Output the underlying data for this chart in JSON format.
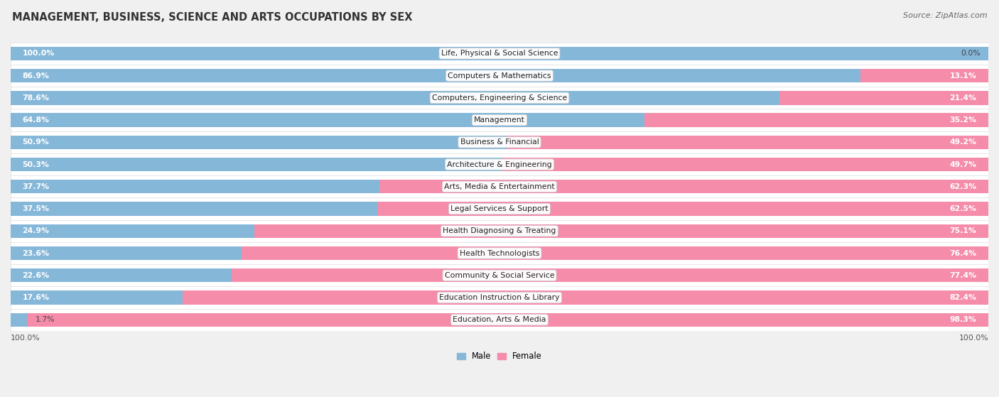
{
  "title": "MANAGEMENT, BUSINESS, SCIENCE AND ARTS OCCUPATIONS BY SEX",
  "source": "Source: ZipAtlas.com",
  "categories": [
    "Life, Physical & Social Science",
    "Computers & Mathematics",
    "Computers, Engineering & Science",
    "Management",
    "Business & Financial",
    "Architecture & Engineering",
    "Arts, Media & Entertainment",
    "Legal Services & Support",
    "Health Diagnosing & Treating",
    "Health Technologists",
    "Community & Social Service",
    "Education Instruction & Library",
    "Education, Arts & Media"
  ],
  "male": [
    100.0,
    86.9,
    78.6,
    64.8,
    50.9,
    50.3,
    37.7,
    37.5,
    24.9,
    23.6,
    22.6,
    17.6,
    1.7
  ],
  "female": [
    0.0,
    13.1,
    21.4,
    35.2,
    49.2,
    49.7,
    62.3,
    62.5,
    75.1,
    76.4,
    77.4,
    82.4,
    98.3
  ],
  "male_color": "#85b7d9",
  "female_color": "#f48caa",
  "background_color": "#f0f0f0",
  "row_bg_even": "#f9f9f9",
  "row_bg_odd": "#efefef",
  "bar_height": 0.62,
  "figsize": [
    14.06,
    5.59
  ],
  "title_fontsize": 10.5,
  "source_fontsize": 8,
  "label_fontsize": 7.8,
  "bar_label_fontsize": 7.8,
  "xlim_left": 0.0,
  "xlim_right": 100.0
}
